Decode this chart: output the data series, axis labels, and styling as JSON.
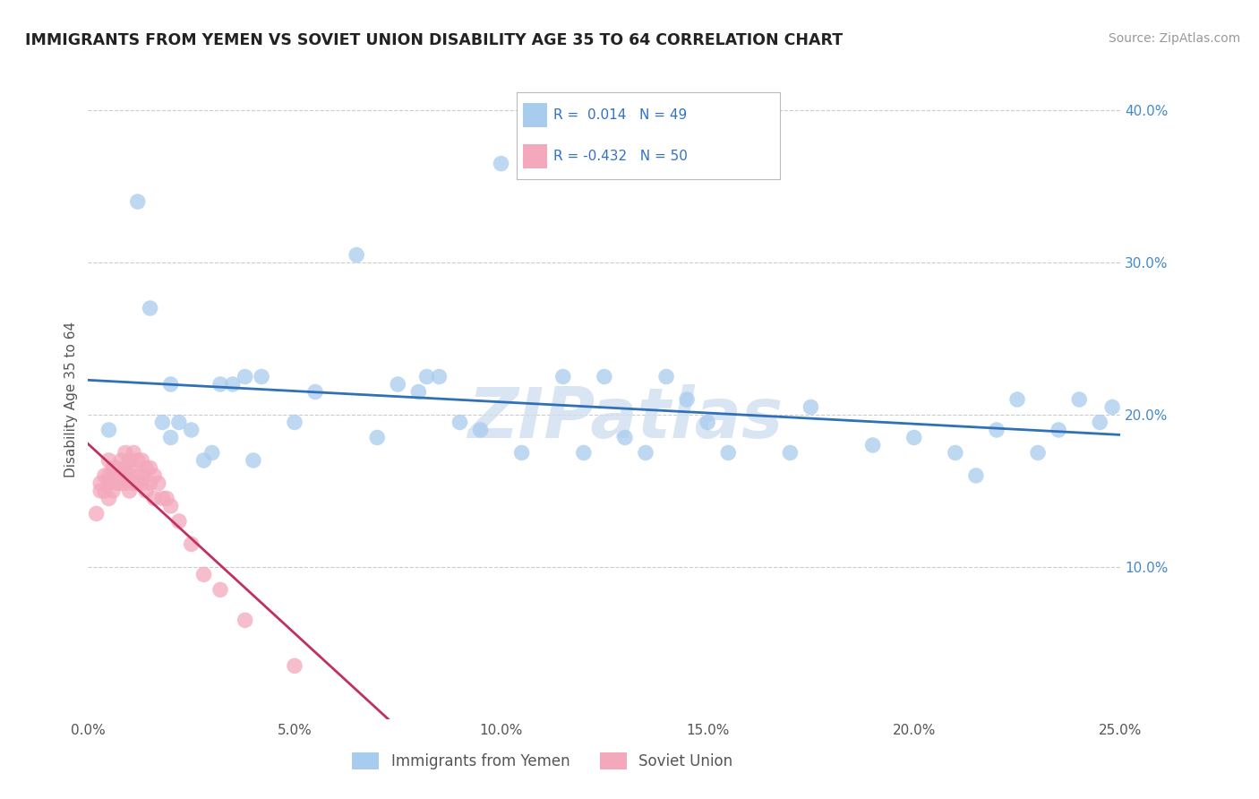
{
  "title": "IMMIGRANTS FROM YEMEN VS SOVIET UNION DISABILITY AGE 35 TO 64 CORRELATION CHART",
  "source": "Source: ZipAtlas.com",
  "ylabel": "Disability Age 35 to 64",
  "watermark": "ZIPatlas",
  "xlim": [
    0.0,
    0.25
  ],
  "ylim": [
    0.0,
    0.42
  ],
  "xticks": [
    0.0,
    0.05,
    0.1,
    0.15,
    0.2,
    0.25
  ],
  "yticks": [
    0.1,
    0.2,
    0.3,
    0.4
  ],
  "xtick_labels": [
    "0.0%",
    "5.0%",
    "10.0%",
    "15.0%",
    "20.0%",
    "25.0%"
  ],
  "ytick_labels": [
    "10.0%",
    "20.0%",
    "30.0%",
    "40.0%"
  ],
  "blue_color": "#A8CCEE",
  "pink_color": "#F4A8BC",
  "blue_line_color": "#3070B8",
  "pink_line_color": "#C03060",
  "yemen_x": [
    0.005,
    0.012,
    0.015,
    0.018,
    0.02,
    0.02,
    0.022,
    0.025,
    0.028,
    0.03,
    0.032,
    0.035,
    0.038,
    0.04,
    0.042,
    0.05,
    0.055,
    0.065,
    0.07,
    0.075,
    0.08,
    0.082,
    0.085,
    0.09,
    0.095,
    0.1,
    0.105,
    0.115,
    0.12,
    0.125,
    0.13,
    0.135,
    0.14,
    0.145,
    0.15,
    0.155,
    0.17,
    0.175,
    0.19,
    0.2,
    0.21,
    0.215,
    0.22,
    0.225,
    0.23,
    0.235,
    0.24,
    0.245,
    0.248
  ],
  "yemen_y": [
    0.19,
    0.34,
    0.27,
    0.195,
    0.185,
    0.22,
    0.195,
    0.19,
    0.17,
    0.175,
    0.22,
    0.22,
    0.225,
    0.17,
    0.225,
    0.195,
    0.215,
    0.305,
    0.185,
    0.22,
    0.215,
    0.225,
    0.225,
    0.195,
    0.19,
    0.365,
    0.175,
    0.225,
    0.175,
    0.225,
    0.185,
    0.175,
    0.225,
    0.21,
    0.195,
    0.175,
    0.175,
    0.205,
    0.18,
    0.185,
    0.175,
    0.16,
    0.19,
    0.21,
    0.175,
    0.19,
    0.21,
    0.195,
    0.205
  ],
  "soviet_x": [
    0.002,
    0.003,
    0.003,
    0.004,
    0.004,
    0.005,
    0.005,
    0.005,
    0.005,
    0.006,
    0.006,
    0.006,
    0.007,
    0.007,
    0.007,
    0.008,
    0.008,
    0.008,
    0.009,
    0.009,
    0.009,
    0.009,
    0.01,
    0.01,
    0.01,
    0.01,
    0.011,
    0.011,
    0.012,
    0.012,
    0.012,
    0.013,
    0.013,
    0.013,
    0.014,
    0.014,
    0.015,
    0.015,
    0.016,
    0.016,
    0.017,
    0.018,
    0.019,
    0.02,
    0.022,
    0.025,
    0.028,
    0.032,
    0.038,
    0.05
  ],
  "soviet_y": [
    0.135,
    0.15,
    0.155,
    0.15,
    0.16,
    0.145,
    0.155,
    0.16,
    0.17,
    0.15,
    0.16,
    0.165,
    0.155,
    0.16,
    0.165,
    0.155,
    0.16,
    0.17,
    0.155,
    0.16,
    0.165,
    0.175,
    0.15,
    0.16,
    0.165,
    0.17,
    0.155,
    0.175,
    0.155,
    0.16,
    0.17,
    0.155,
    0.16,
    0.17,
    0.15,
    0.165,
    0.155,
    0.165,
    0.145,
    0.16,
    0.155,
    0.145,
    0.145,
    0.14,
    0.13,
    0.115,
    0.095,
    0.085,
    0.065,
    0.035
  ],
  "legend_line1": "R =  0.014   N = 49",
  "legend_line2": "R = -0.432   N = 50",
  "legend_label1": "Immigrants from Yemen",
  "legend_label2": "Soviet Union"
}
